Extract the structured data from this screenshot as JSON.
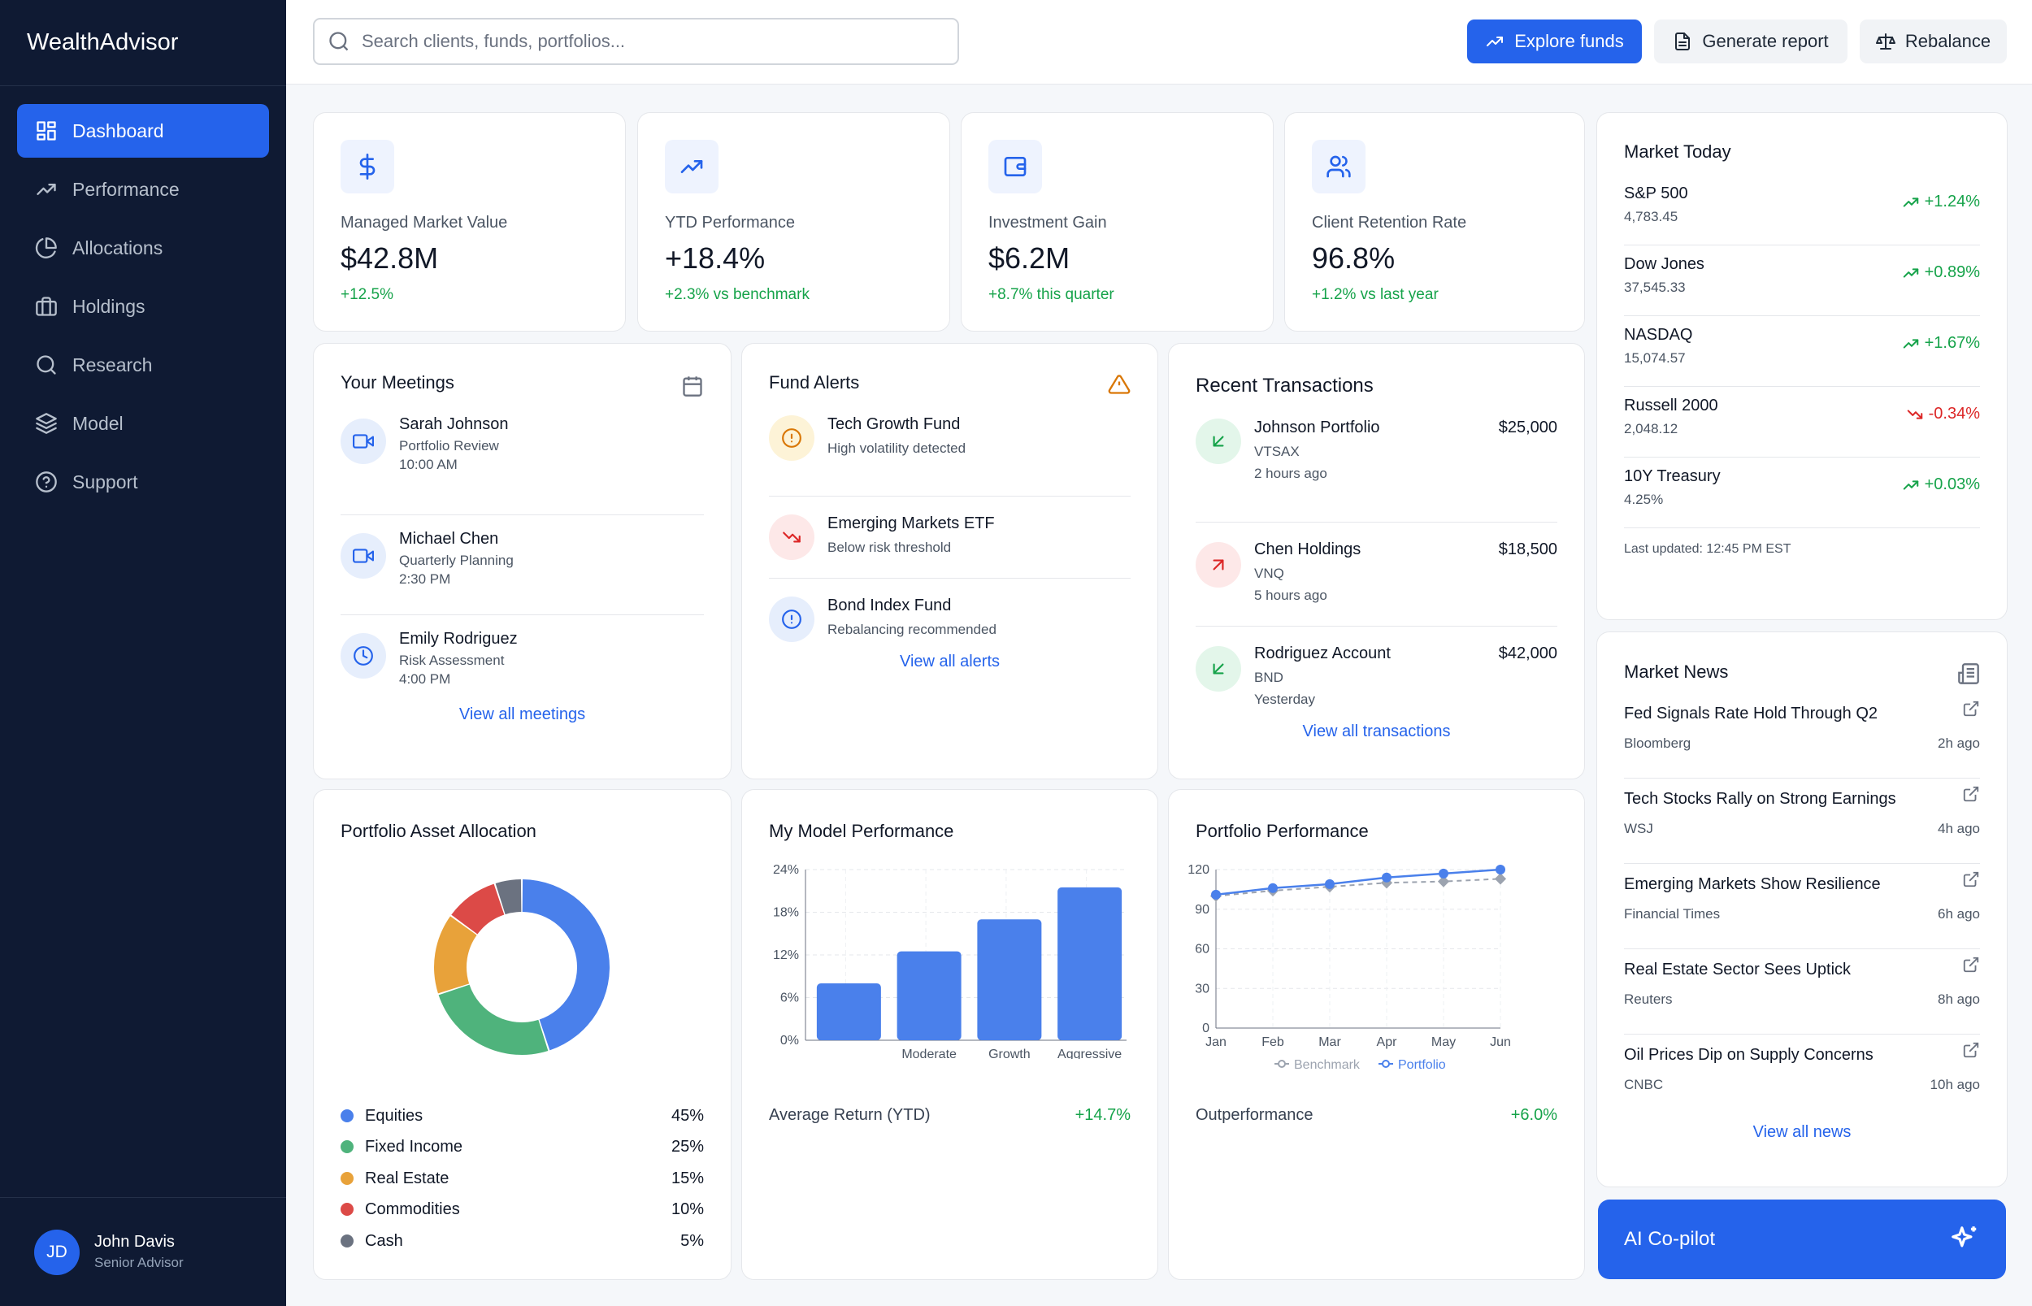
{
  "app": {
    "title": "WealthAdvisor"
  },
  "nav": [
    {
      "label": "Dashboard",
      "icon": "dashboard-icon",
      "active": true
    },
    {
      "label": "Performance",
      "icon": "trending-up-icon"
    },
    {
      "label": "Allocations",
      "icon": "pie-chart-icon"
    },
    {
      "label": "Holdings",
      "icon": "briefcase-icon"
    },
    {
      "label": "Research",
      "icon": "search-icon"
    },
    {
      "label": "Model",
      "icon": "layers-icon"
    },
    {
      "label": "Support",
      "icon": "help-circle-icon"
    }
  ],
  "user": {
    "initials": "JD",
    "name": "John Davis",
    "role": "Senior Advisor"
  },
  "search": {
    "placeholder": "Search clients, funds, portfolios..."
  },
  "toolbar": {
    "explore": "Explore funds",
    "report": "Generate report",
    "rebalance": "Rebalance"
  },
  "kpis": [
    {
      "label": "Managed Market Value",
      "value": "$42.8M",
      "change": "+12.5%",
      "icon": "dollar-icon"
    },
    {
      "label": "YTD Performance",
      "value": "+18.4%",
      "change": "+2.3% vs benchmark",
      "icon": "trending-up-icon"
    },
    {
      "label": "Investment Gain",
      "value": "$6.2M",
      "change": "+8.7% this quarter",
      "icon": "wallet-icon"
    },
    {
      "label": "Client Retention Rate",
      "value": "96.8%",
      "change": "+1.2% vs last year",
      "icon": "users-icon"
    }
  ],
  "meetings": {
    "title": "Your Meetings",
    "link": "View all meetings",
    "items": [
      {
        "name": "Sarah Johnson",
        "type": "Portfolio Review",
        "time": "10:00 AM",
        "icon": "video-icon"
      },
      {
        "name": "Michael Chen",
        "type": "Quarterly Planning",
        "time": "2:30 PM",
        "icon": "video-icon"
      },
      {
        "name": "Emily Rodriguez",
        "type": "Risk Assessment",
        "time": "4:00 PM",
        "icon": "clock-icon"
      }
    ]
  },
  "alerts": {
    "title": "Fund Alerts",
    "link": "View all alerts",
    "items": [
      {
        "name": "Tech Growth Fund",
        "desc": "High volatility detected",
        "icon": "alert-circle-icon",
        "color": "#d97706",
        "bg": "#fdf3d7"
      },
      {
        "name": "Emerging Markets ETF",
        "desc": "Below risk threshold",
        "icon": "trending-down-icon",
        "color": "#dc2626",
        "bg": "#fde8e8"
      },
      {
        "name": "Bond Index Fund",
        "desc": "Rebalancing recommended",
        "icon": "info-circle-icon",
        "color": "#2563eb",
        "bg": "#e6eefc"
      }
    ]
  },
  "transactions": {
    "title": "Recent Transactions",
    "link": "View all transactions",
    "items": [
      {
        "name": "Johnson Portfolio",
        "ticker": "VTSAX",
        "time": "2 hours ago",
        "amount": "$25,000",
        "dir": "in"
      },
      {
        "name": "Chen Holdings",
        "ticker": "VNQ",
        "time": "5 hours ago",
        "amount": "$18,500",
        "dir": "out"
      },
      {
        "name": "Rodriguez Account",
        "ticker": "BND",
        "time": "Yesterday",
        "amount": "$42,000",
        "dir": "in"
      }
    ]
  },
  "market": {
    "title": "Market Today",
    "updated": "Last updated: 12:45 PM EST",
    "items": [
      {
        "name": "S&P 500",
        "value": "4,783.45",
        "change": "+1.24%",
        "dir": "up"
      },
      {
        "name": "Dow Jones",
        "value": "37,545.33",
        "change": "+0.89%",
        "dir": "up"
      },
      {
        "name": "NASDAQ",
        "value": "15,074.57",
        "change": "+1.67%",
        "dir": "up"
      },
      {
        "name": "Russell 2000",
        "value": "2,048.12",
        "change": "-0.34%",
        "dir": "down"
      },
      {
        "name": "10Y Treasury",
        "value": "4.25%",
        "change": "+0.03%",
        "dir": "up"
      }
    ]
  },
  "news": {
    "title": "Market News",
    "link": "View all news",
    "items": [
      {
        "title": "Fed Signals Rate Hold Through Q2",
        "source": "Bloomberg",
        "time": "2h ago"
      },
      {
        "title": "Tech Stocks Rally on Strong Earnings",
        "source": "WSJ",
        "time": "4h ago"
      },
      {
        "title": "Emerging Markets Show Resilience",
        "source": "Financial Times",
        "time": "6h ago"
      },
      {
        "title": "Real Estate Sector Sees Uptick",
        "source": "Reuters",
        "time": "8h ago"
      },
      {
        "title": "Oil Prices Dip on Supply Concerns",
        "source": "CNBC",
        "time": "10h ago"
      }
    ]
  },
  "copilot": {
    "label": "AI Co-pilot"
  },
  "allocation": {
    "title": "Portfolio Asset Allocation",
    "items": [
      {
        "label": "Equities",
        "pct": "45%",
        "value": 45,
        "color": "#4a80eb"
      },
      {
        "label": "Fixed Income",
        "pct": "25%",
        "value": 25,
        "color": "#4fb37c"
      },
      {
        "label": "Real Estate",
        "pct": "15%",
        "value": 15,
        "color": "#e8a23a"
      },
      {
        "label": "Commodities",
        "pct": "10%",
        "value": 10,
        "color": "#dc4a47"
      },
      {
        "label": "Cash",
        "pct": "5%",
        "value": 5,
        "color": "#6b7280"
      }
    ]
  },
  "model": {
    "title": "My Model Performance",
    "footer_label": "Average Return (YTD)",
    "footer_value": "+14.7%"
  },
  "portfolio": {
    "title": "Portfolio Performance",
    "footer_label": "Outperformance",
    "footer_value": "+6.0%"
  },
  "chart_data": [
    {
      "type": "pie",
      "title": "Portfolio Asset Allocation",
      "categories": [
        "Equities",
        "Fixed Income",
        "Real Estate",
        "Commodities",
        "Cash"
      ],
      "values": [
        45,
        25,
        15,
        10,
        5
      ]
    },
    {
      "type": "bar",
      "title": "My Model Performance",
      "categories": [
        "",
        "Moderate",
        "Growth",
        "Aggressive"
      ],
      "values": [
        8,
        12.5,
        17,
        21.5
      ],
      "yticks": [
        "0%",
        "6%",
        "12%",
        "18%",
        "24%"
      ],
      "ylim": [
        0,
        24
      ],
      "grid": true
    },
    {
      "type": "line",
      "title": "Portfolio Performance",
      "categories": [
        "Jan",
        "Feb",
        "Mar",
        "Apr",
        "May",
        "Jun"
      ],
      "ylim": [
        0,
        120
      ],
      "yticks": [
        "0",
        "30",
        "60",
        "90",
        "120"
      ],
      "grid": true,
      "legend": "bottom",
      "series": [
        {
          "name": "Benchmark",
          "values": [
            100,
            104,
            107,
            110,
            111,
            113
          ],
          "color": "#9ca3af"
        },
        {
          "name": "Portfolio",
          "values": [
            101,
            106,
            109,
            114,
            117,
            120
          ],
          "color": "#4a80eb"
        }
      ]
    }
  ]
}
